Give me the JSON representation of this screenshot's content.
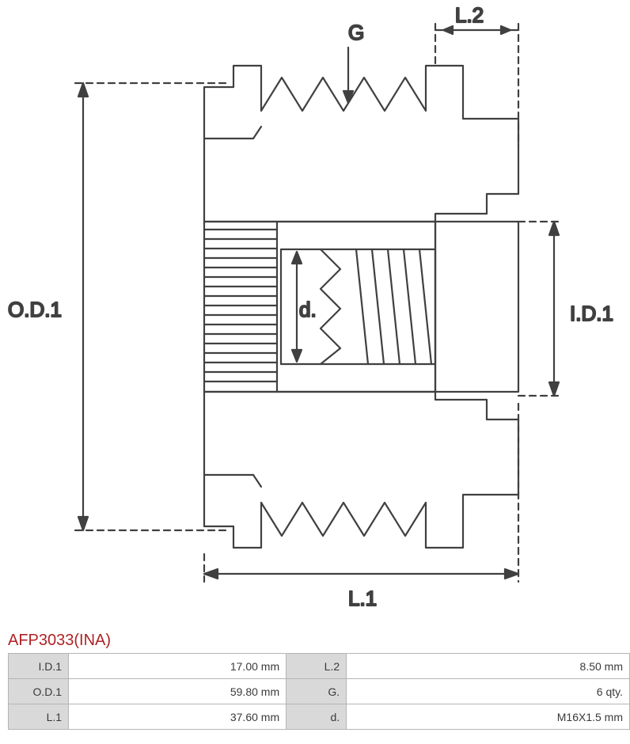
{
  "part_number": "AFP3033(INA)",
  "diagram": {
    "labels": {
      "G": "G",
      "L2": "L.2",
      "OD1": "O.D.1",
      "d": "d.",
      "ID1": "I.D.1",
      "L1": "L.1"
    },
    "stroke_color": "#404040",
    "stroke_width": 2.2,
    "background": "#ffffff"
  },
  "specs": {
    "rows": [
      {
        "l_label": "I.D.1",
        "l_value": "17.00 mm",
        "r_label": "L.2",
        "r_value": "8.50 mm"
      },
      {
        "l_label": "O.D.1",
        "l_value": "59.80 mm",
        "r_label": "G.",
        "r_value": "6 qty."
      },
      {
        "l_label": "L.1",
        "l_value": "37.60 mm",
        "r_label": "d.",
        "r_value": "M16X1.5 mm"
      }
    ]
  },
  "table_style": {
    "label_bg": "#d9d9d9",
    "border_color": "#b5b5b5",
    "text_color": "#3a3a3a",
    "title_color": "#b02224"
  }
}
